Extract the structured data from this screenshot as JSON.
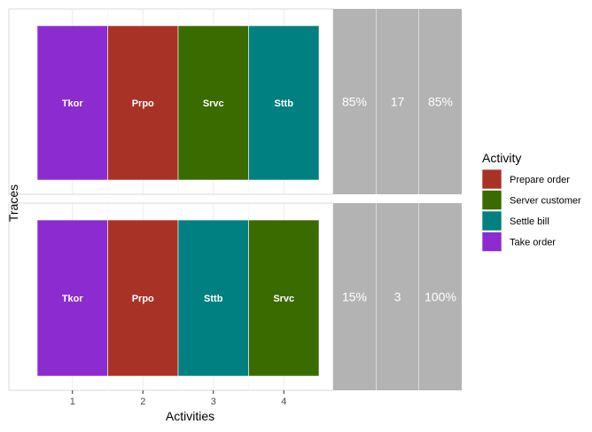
{
  "chart_data": {
    "type": "heatmap",
    "xlabel": "Activities",
    "ylabel": "Traces",
    "x_ticks": [
      "1",
      "2",
      "3",
      "4"
    ],
    "grid": true,
    "legend": {
      "title": "Activity",
      "position": "right",
      "entries": [
        {
          "label": "Prepare order",
          "color": "#A93226"
        },
        {
          "label": "Server customer",
          "color": "#3A6B00"
        },
        {
          "label": "Settle bill",
          "color": "#008080"
        },
        {
          "label": "Take order",
          "color": "#8B2BD0"
        }
      ]
    },
    "traces": [
      {
        "activities": [
          {
            "position": 1,
            "activity": "Take order",
            "label": "Tkor"
          },
          {
            "position": 2,
            "activity": "Prepare order",
            "label": "Prpo"
          },
          {
            "position": 3,
            "activity": "Server customer",
            "label": "Srvc"
          },
          {
            "position": 4,
            "activity": "Settle bill",
            "label": "Sttb"
          }
        ],
        "stats": [
          "85%",
          "17",
          "85%"
        ]
      },
      {
        "activities": [
          {
            "position": 1,
            "activity": "Take order",
            "label": "Tkor"
          },
          {
            "position": 2,
            "activity": "Prepare order",
            "label": "Prpo"
          },
          {
            "position": 3,
            "activity": "Settle bill",
            "label": "Sttb"
          },
          {
            "position": 4,
            "activity": "Server customer",
            "label": "Srvc"
          }
        ],
        "stats": [
          "15%",
          "3",
          "100%"
        ]
      }
    ]
  }
}
